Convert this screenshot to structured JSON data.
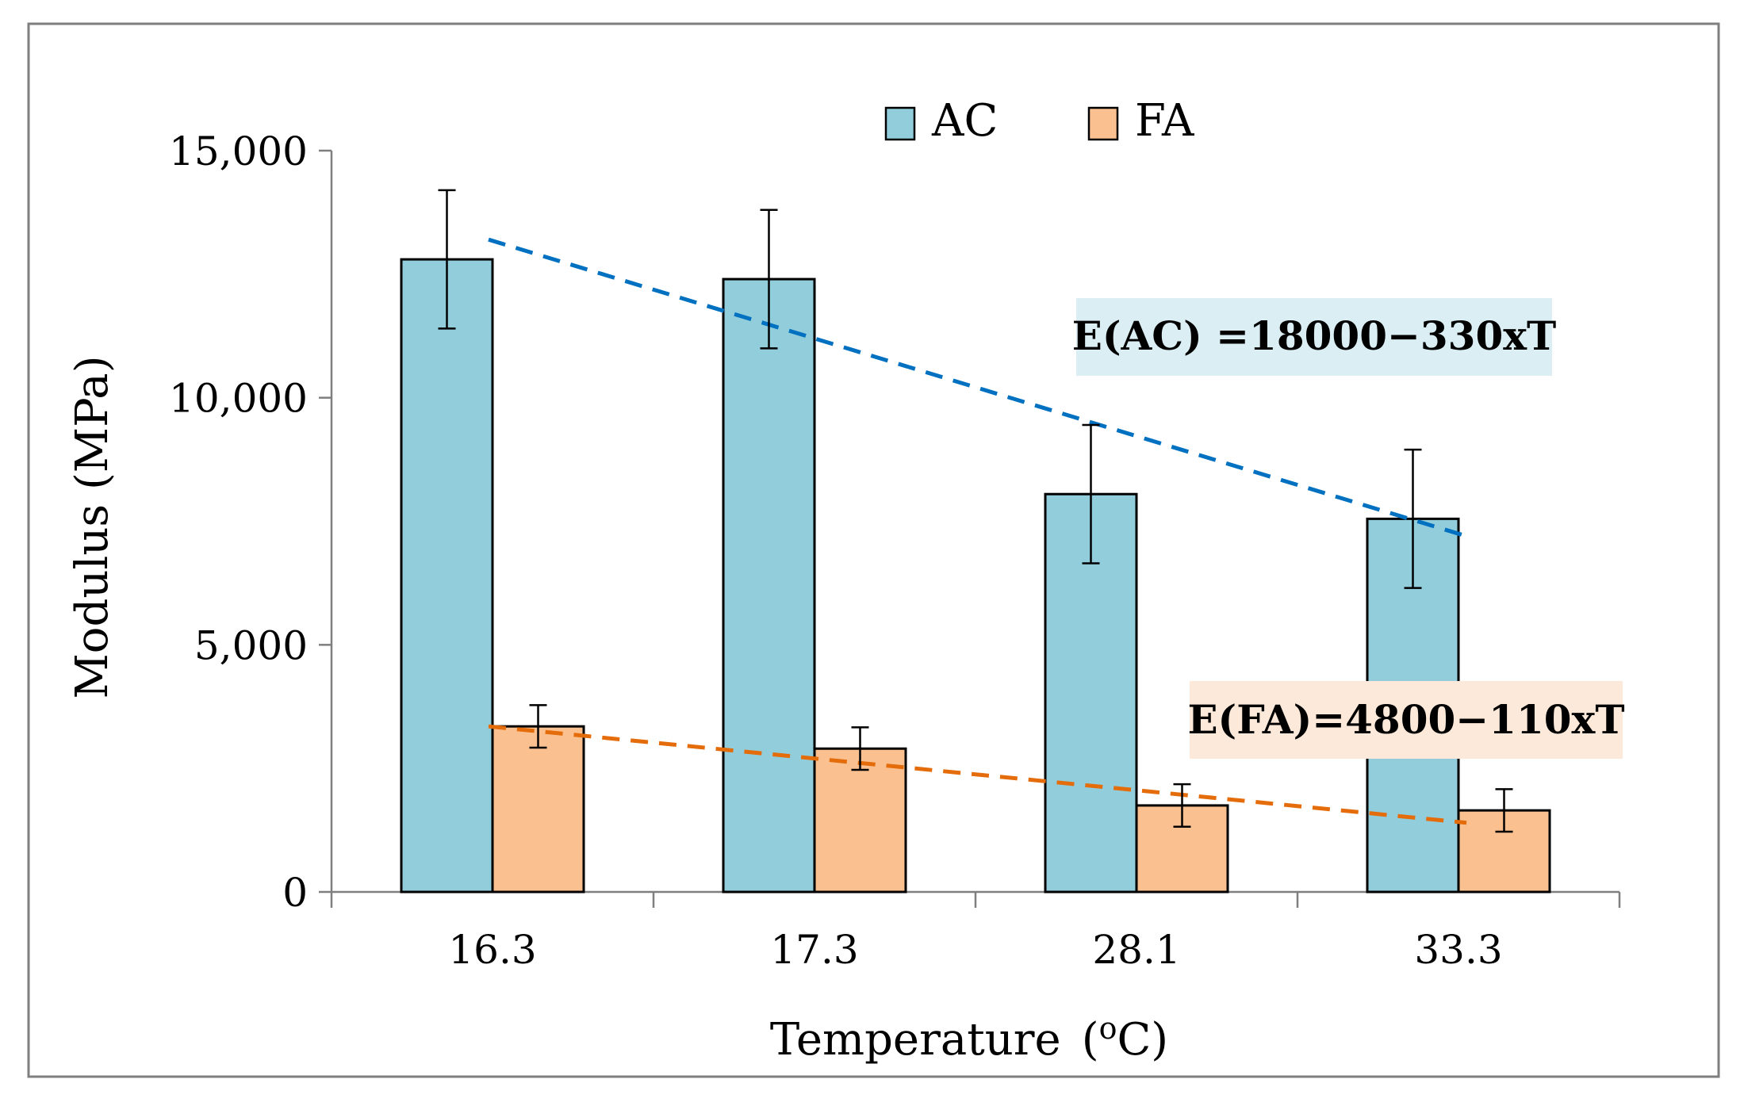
{
  "chart_data": {
    "type": "bar",
    "xlabel": "Temperature",
    "xlabel_unit_prefix": "(",
    "xlabel_unit_sup": "o",
    "xlabel_unit_suffix": "C)",
    "ylabel": "Modulus (MPa)",
    "ylim": [
      0,
      15000
    ],
    "yticks": [
      0,
      5000,
      10000,
      15000
    ],
    "ytick_labels": [
      "0",
      "5,000",
      "10,000",
      "15,000"
    ],
    "categories": [
      "16.3",
      "17.3",
      "28.1",
      "33.3"
    ],
    "series": [
      {
        "name": "AC",
        "color": "#92CDDC",
        "values": [
          12800,
          12400,
          8050,
          7550
        ],
        "error": [
          1400,
          1400,
          1400,
          1400
        ]
      },
      {
        "name": "FA",
        "color": "#FAC090",
        "values": [
          3350,
          2900,
          1750,
          1650
        ],
        "error": [
          430,
          430,
          430,
          430
        ]
      }
    ],
    "trendlines": [
      {
        "series": "AC",
        "color": "#0070C0",
        "start": 13200,
        "end": 7200
      },
      {
        "series": "FA",
        "color": "#E46C0A",
        "start": 3350,
        "end": 1400
      }
    ],
    "annotations": [
      {
        "series": "AC",
        "text": "E(AC) =18000−330xT",
        "background": "#DAEEF3"
      },
      {
        "series": "FA",
        "text": "E(FA)=4800−110xT",
        "background": "#FDE9D9"
      }
    ],
    "legend_position": "top",
    "grid": false
  }
}
